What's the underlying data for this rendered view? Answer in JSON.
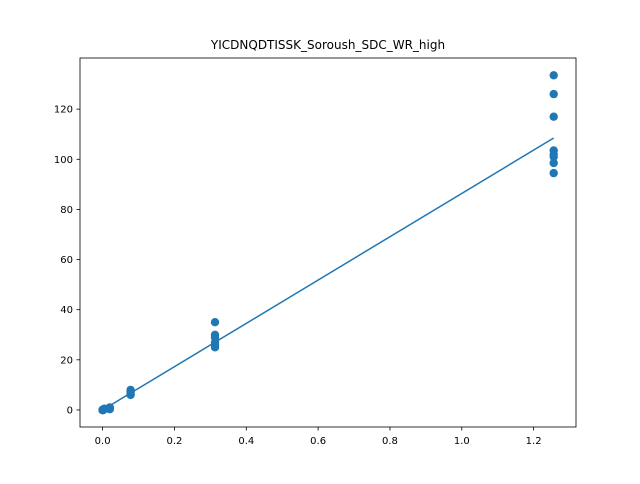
{
  "chart_data": {
    "type": "scatter",
    "title": "YICDNQDTISSK_Soroush_SDC_WR_high",
    "xlabel": "",
    "ylabel": "",
    "xlim": [
      -0.063,
      1.318
    ],
    "ylim": [
      -6.8,
      140.4
    ],
    "xticks": [
      {
        "value": 0.0,
        "label": "0.0"
      },
      {
        "value": 0.2,
        "label": "0.2"
      },
      {
        "value": 0.4,
        "label": "0.4"
      },
      {
        "value": 0.6,
        "label": "0.6"
      },
      {
        "value": 0.8,
        "label": "0.8"
      },
      {
        "value": 1.0,
        "label": "1.0"
      },
      {
        "value": 1.2,
        "label": "1.2"
      }
    ],
    "yticks": [
      {
        "value": 0,
        "label": "0"
      },
      {
        "value": 20,
        "label": "20"
      },
      {
        "value": 40,
        "label": "40"
      },
      {
        "value": 60,
        "label": "60"
      },
      {
        "value": 80,
        "label": "80"
      },
      {
        "value": 100,
        "label": "100"
      },
      {
        "value": 120,
        "label": "120"
      }
    ],
    "grid": false,
    "series": [
      {
        "kind": "scatter",
        "color": "#1f77b4",
        "points": [
          {
            "x": 0.0,
            "y": 0.0
          },
          {
            "x": 0.0,
            "y": 0.1
          },
          {
            "x": 0.0,
            "y": -0.1
          },
          {
            "x": 0.002,
            "y": 0.2
          },
          {
            "x": 0.002,
            "y": 0.0
          },
          {
            "x": 0.005,
            "y": 0.5
          },
          {
            "x": 0.005,
            "y": 0.3
          },
          {
            "x": 0.02,
            "y": 1.0
          },
          {
            "x": 0.02,
            "y": 0.6
          },
          {
            "x": 0.02,
            "y": 0.3
          },
          {
            "x": 0.078,
            "y": 8.0
          },
          {
            "x": 0.078,
            "y": 7.0
          },
          {
            "x": 0.078,
            "y": 6.3
          },
          {
            "x": 0.078,
            "y": 6.0
          },
          {
            "x": 0.078,
            "y": 7.5
          },
          {
            "x": 0.313,
            "y": 35.0
          },
          {
            "x": 0.313,
            "y": 30.0
          },
          {
            "x": 0.313,
            "y": 29.0
          },
          {
            "x": 0.313,
            "y": 26.0
          },
          {
            "x": 0.313,
            "y": 25.0
          },
          {
            "x": 0.313,
            "y": 27.0
          },
          {
            "x": 1.256,
            "y": 133.5
          },
          {
            "x": 1.256,
            "y": 126.0
          },
          {
            "x": 1.256,
            "y": 117.0
          },
          {
            "x": 1.256,
            "y": 103.5
          },
          {
            "x": 1.256,
            "y": 102.0
          },
          {
            "x": 1.256,
            "y": 101.0
          },
          {
            "x": 1.256,
            "y": 98.5
          },
          {
            "x": 1.256,
            "y": 94.5
          }
        ]
      },
      {
        "kind": "line",
        "color": "#1f77b4",
        "points": [
          {
            "x": 0.0,
            "y": 0.0
          },
          {
            "x": 1.256,
            "y": 108.5
          }
        ]
      }
    ]
  }
}
